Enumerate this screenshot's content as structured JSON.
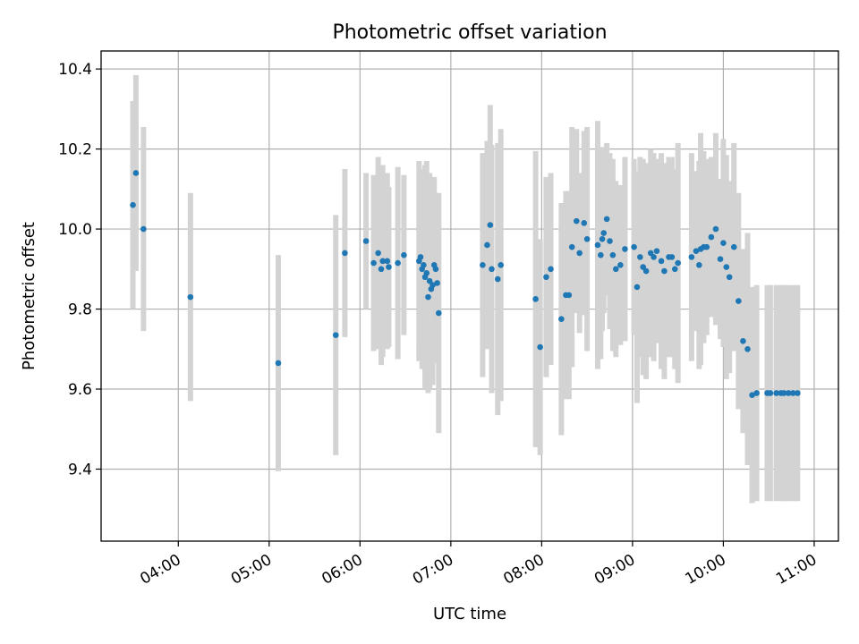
{
  "chart_data": {
    "type": "scatter",
    "title": "Photometric offset variation",
    "xlabel": "UTC time",
    "ylabel": "Photometric offset",
    "x_ticks": [
      "04:00",
      "05:00",
      "06:00",
      "07:00",
      "08:00",
      "09:00",
      "10:00",
      "11:00"
    ],
    "y_ticks": [
      9.4,
      9.6,
      9.8,
      10.0,
      10.2,
      10.4
    ],
    "xlim": [
      "03:09",
      "11:16"
    ],
    "ylim": [
      9.22,
      10.445
    ],
    "grid": true,
    "colors": {
      "points": "#1f77b4",
      "errorbars": "#d3d3d3",
      "grid": "#b0b0b0"
    },
    "series": [
      {
        "x": [
          "03:30",
          "03:32",
          "03:37",
          "04:08",
          "05:06",
          "05:44",
          "05:50",
          "06:04",
          "06:09",
          "06:12",
          "06:14",
          "06:15",
          "06:18",
          "06:19",
          "06:25",
          "06:29",
          "06:39",
          "06:40",
          "06:41",
          "06:42",
          "06:43",
          "06:44",
          "06:45",
          "06:46",
          "06:47",
          "06:48",
          "06:49",
          "06:50",
          "06:51",
          "06:52",
          "07:21",
          "07:24",
          "07:26",
          "07:27",
          "07:31",
          "07:33",
          "07:56",
          "07:59",
          "08:03",
          "08:06",
          "08:13",
          "08:16",
          "08:18",
          "08:20",
          "08:23",
          "08:25",
          "08:28",
          "08:30",
          "08:37",
          "08:39",
          "08:40",
          "08:41",
          "08:43",
          "08:45",
          "08:47",
          "08:49",
          "08:52",
          "08:55",
          "09:01",
          "09:03",
          "09:05",
          "09:07",
          "09:09",
          "09:12",
          "09:14",
          "09:16",
          "09:19",
          "09:21",
          "09:24",
          "09:26",
          "09:28",
          "09:30",
          "09:39",
          "09:42",
          "09:44",
          "09:45",
          "09:47",
          "09:49",
          "09:52",
          "09:55",
          "09:58",
          "10:00",
          "10:02",
          "10:04",
          "10:07",
          "10:10",
          "10:13",
          "10:16",
          "10:19",
          "10:22",
          "10:29",
          "10:31",
          "10:35",
          "10:38",
          "10:40",
          "10:43",
          "10:46",
          "10:49"
        ],
        "y": [
          10.06,
          10.14,
          10.0,
          9.83,
          9.665,
          9.735,
          9.94,
          9.97,
          9.915,
          9.94,
          9.9,
          9.92,
          9.92,
          9.905,
          9.915,
          9.935,
          9.92,
          9.93,
          9.9,
          9.91,
          9.88,
          9.89,
          9.83,
          9.87,
          9.85,
          9.86,
          9.91,
          9.9,
          9.865,
          9.79,
          9.91,
          9.96,
          10.01,
          9.9,
          9.875,
          9.91,
          9.825,
          9.705,
          9.88,
          9.9,
          9.775,
          9.835,
          9.835,
          9.955,
          10.02,
          9.94,
          10.015,
          9.975,
          9.96,
          9.935,
          9.975,
          9.99,
          10.025,
          9.97,
          9.935,
          9.9,
          9.91,
          9.95,
          9.955,
          9.855,
          9.93,
          9.905,
          9.895,
          9.94,
          9.93,
          9.945,
          9.92,
          9.895,
          9.93,
          9.93,
          9.9,
          9.915,
          9.93,
          9.945,
          9.91,
          9.95,
          9.955,
          9.955,
          9.98,
          10.0,
          9.925,
          9.965,
          9.905,
          9.88,
          9.955,
          9.82,
          9.72,
          9.7,
          9.585,
          9.59,
          9.59,
          9.59,
          9.59,
          9.59,
          9.59,
          9.59,
          9.59,
          9.59
        ],
        "err": [
          0.26,
          0.245,
          0.255,
          0.26,
          0.27,
          0.3,
          0.21,
          0.17,
          0.22,
          0.24,
          0.24,
          0.24,
          0.22,
          0.2,
          0.24,
          0.2,
          0.25,
          0.21,
          0.25,
          0.23,
          0.28,
          0.28,
          0.24,
          0.27,
          0.23,
          0.25,
          0.22,
          0.19,
          0.2,
          0.3,
          0.28,
          0.26,
          0.3,
          0.31,
          0.34,
          0.34,
          0.37,
          0.27,
          0.25,
          0.24,
          0.29,
          0.26,
          0.26,
          0.3,
          0.23,
          0.2,
          0.23,
          0.28,
          0.31,
          0.26,
          0.23,
          0.2,
          0.19,
          0.22,
          0.24,
          0.22,
          0.2,
          0.23,
          0.22,
          0.29,
          0.25,
          0.27,
          0.27,
          0.26,
          0.26,
          0.23,
          0.27,
          0.27,
          0.25,
          0.25,
          0.25,
          0.3,
          0.26,
          0.2,
          0.26,
          0.29,
          0.24,
          0.22,
          0.2,
          0.24,
          0.2,
          0.26,
          0.28,
          0.24,
          0.26,
          0.27,
          0.23,
          0.29,
          0.27,
          0.27,
          0.27,
          0.27,
          0.27,
          0.27,
          0.27,
          0.27,
          0.27,
          0.27
        ]
      }
    ]
  }
}
